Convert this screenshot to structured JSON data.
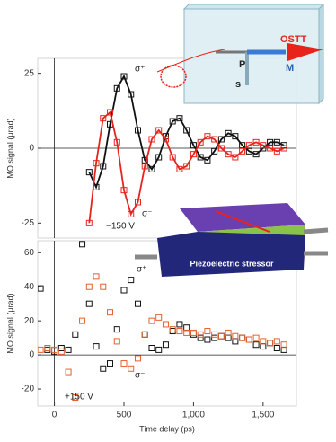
{
  "chart_data": [
    {
      "type": "scatter",
      "ylabel": "MO signal (μrad)",
      "xlim": [
        -120,
        1740
      ],
      "ylim": [
        -30,
        30
      ],
      "yticks": [
        -25,
        0,
        25
      ],
      "x": [
        250,
        300,
        350,
        400,
        450,
        500,
        550,
        600,
        650,
        700,
        750,
        800,
        850,
        900,
        950,
        1000,
        1050,
        1100,
        1150,
        1200,
        1250,
        1300,
        1350,
        1400,
        1450,
        1500,
        1550,
        1600,
        1650
      ],
      "series": [
        {
          "color": "#111111",
          "line": true,
          "values": [
            -8,
            -13,
            -6,
            8,
            20,
            24,
            18,
            6,
            -4,
            -7,
            -3,
            4,
            9,
            10,
            6,
            1,
            -3,
            -4,
            -1,
            3,
            5,
            4,
            1,
            -1,
            -2,
            0,
            2,
            2,
            1
          ]
        },
        {
          "color": "#e8231c",
          "line": true,
          "values": [
            -25,
            -5,
            10,
            12,
            2,
            -14,
            -22,
            -18,
            -6,
            3,
            6,
            3,
            -3,
            -7,
            -6,
            -2,
            2,
            4,
            3,
            0,
            -2,
            -3,
            -1,
            1,
            2,
            1,
            0,
            -1,
            0
          ]
        }
      ],
      "annotations": [
        "σ⁺",
        "σ⁻",
        "−150 V"
      ]
    },
    {
      "type": "scatter",
      "ylabel": "MO signal (μrad)",
      "xlabel": "Time delay (ps)",
      "xlim": [
        -120,
        1740
      ],
      "ylim": [
        -30,
        67
      ],
      "yticks": [
        -20,
        0,
        20,
        40,
        60
      ],
      "xticks": [
        0,
        500,
        {
          "value": 1000,
          "label": "1,000"
        },
        {
          "value": 1500,
          "label": "1,500"
        }
      ],
      "x": [
        -100,
        -50,
        0,
        50,
        100,
        150,
        200,
        250,
        300,
        350,
        400,
        450,
        500,
        550,
        600,
        650,
        700,
        750,
        800,
        850,
        900,
        950,
        1000,
        1050,
        1100,
        1150,
        1200,
        1250,
        1300,
        1350,
        1400,
        1450,
        1500,
        1550,
        1600,
        1650
      ],
      "series": [
        {
          "color": "#111111",
          "line": false,
          "values": [
            39,
            3,
            2,
            4,
            3,
            12,
            65,
            30,
            5,
            -8,
            -5,
            15,
            38,
            44,
            30,
            12,
            4,
            3,
            6,
            14,
            18,
            16,
            12,
            10,
            9,
            10,
            11,
            10,
            8,
            10,
            9,
            6,
            5,
            7,
            4,
            3
          ]
        },
        {
          "color": "#e2622c",
          "line": false,
          "values": [
            3,
            4,
            3,
            2,
            -10,
            -25,
            20,
            40,
            46,
            40,
            25,
            8,
            -5,
            -8,
            -2,
            12,
            20,
            22,
            18,
            15,
            14,
            13,
            13,
            12,
            14,
            12,
            11,
            13,
            11,
            10,
            9,
            10,
            8,
            7,
            8,
            6
          ]
        }
      ],
      "annotations": [
        "σ⁺",
        "σ⁻",
        "+150 V"
      ]
    }
  ],
  "insets": {
    "top": [
      "OSTT",
      "P",
      "M",
      "s"
    ],
    "middle": [
      "Piezoelectric stressor"
    ]
  }
}
